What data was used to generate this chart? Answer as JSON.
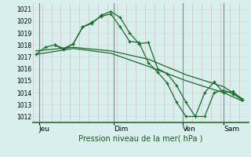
{
  "title": "",
  "xlabel": "Pression niveau de la mer( hPa )",
  "ylabel": "",
  "bg_color": "#d8efed",
  "plot_bg_color": "#d8efed",
  "grid_color_h": "#c8e0de",
  "grid_color_v": "#e8b8b8",
  "line_color": "#1a6b2a",
  "spine_color": "#2a6b2a",
  "ylim": [
    1011.5,
    1021.5
  ],
  "yticks": [
    1012,
    1013,
    1014,
    1015,
    1016,
    1017,
    1018,
    1019,
    1020,
    1021
  ],
  "day_labels": [
    "Jeu",
    "Dim",
    "Ven",
    "Sam"
  ],
  "xlim_hours": [
    0,
    138
  ],
  "day_vline_hours": [
    4,
    52,
    96,
    122
  ],
  "series": [
    {
      "x": [
        2,
        8,
        14,
        20,
        26,
        32,
        38,
        44,
        50,
        56,
        62,
        68,
        74,
        80,
        86,
        92,
        98,
        104,
        110,
        116,
        122,
        128,
        134
      ],
      "y": [
        1017.2,
        1017.8,
        1018.0,
        1017.7,
        1018.1,
        1019.5,
        1019.8,
        1020.5,
        1020.8,
        1020.3,
        1019.0,
        1018.1,
        1018.2,
        1016.0,
        1015.6,
        1014.6,
        1013.2,
        1012.0,
        1012.0,
        1014.0,
        1014.2,
        1013.9,
        1013.4
      ],
      "marker": true
    },
    {
      "x": [
        14,
        20,
        26,
        32,
        38,
        44,
        50,
        56,
        62,
        68,
        74,
        80,
        86,
        92,
        98,
        104,
        110,
        116,
        122,
        128,
        134
      ],
      "y": [
        1018.0,
        1017.6,
        1018.1,
        1019.5,
        1019.9,
        1020.4,
        1020.6,
        1019.5,
        1018.3,
        1018.2,
        1016.5,
        1015.7,
        1014.8,
        1013.2,
        1012.0,
        1012.0,
        1014.0,
        1014.9,
        1014.0,
        1014.1,
        1013.4
      ],
      "marker": true
    },
    {
      "x": [
        2,
        26,
        50,
        74,
        98,
        122,
        134
      ],
      "y": [
        1017.5,
        1017.8,
        1017.5,
        1016.8,
        1015.5,
        1014.5,
        1013.5
      ],
      "marker": false
    },
    {
      "x": [
        2,
        26,
        50,
        74,
        98,
        122,
        134
      ],
      "y": [
        1017.2,
        1017.7,
        1017.3,
        1016.2,
        1015.0,
        1014.0,
        1013.3
      ],
      "marker": false
    }
  ]
}
